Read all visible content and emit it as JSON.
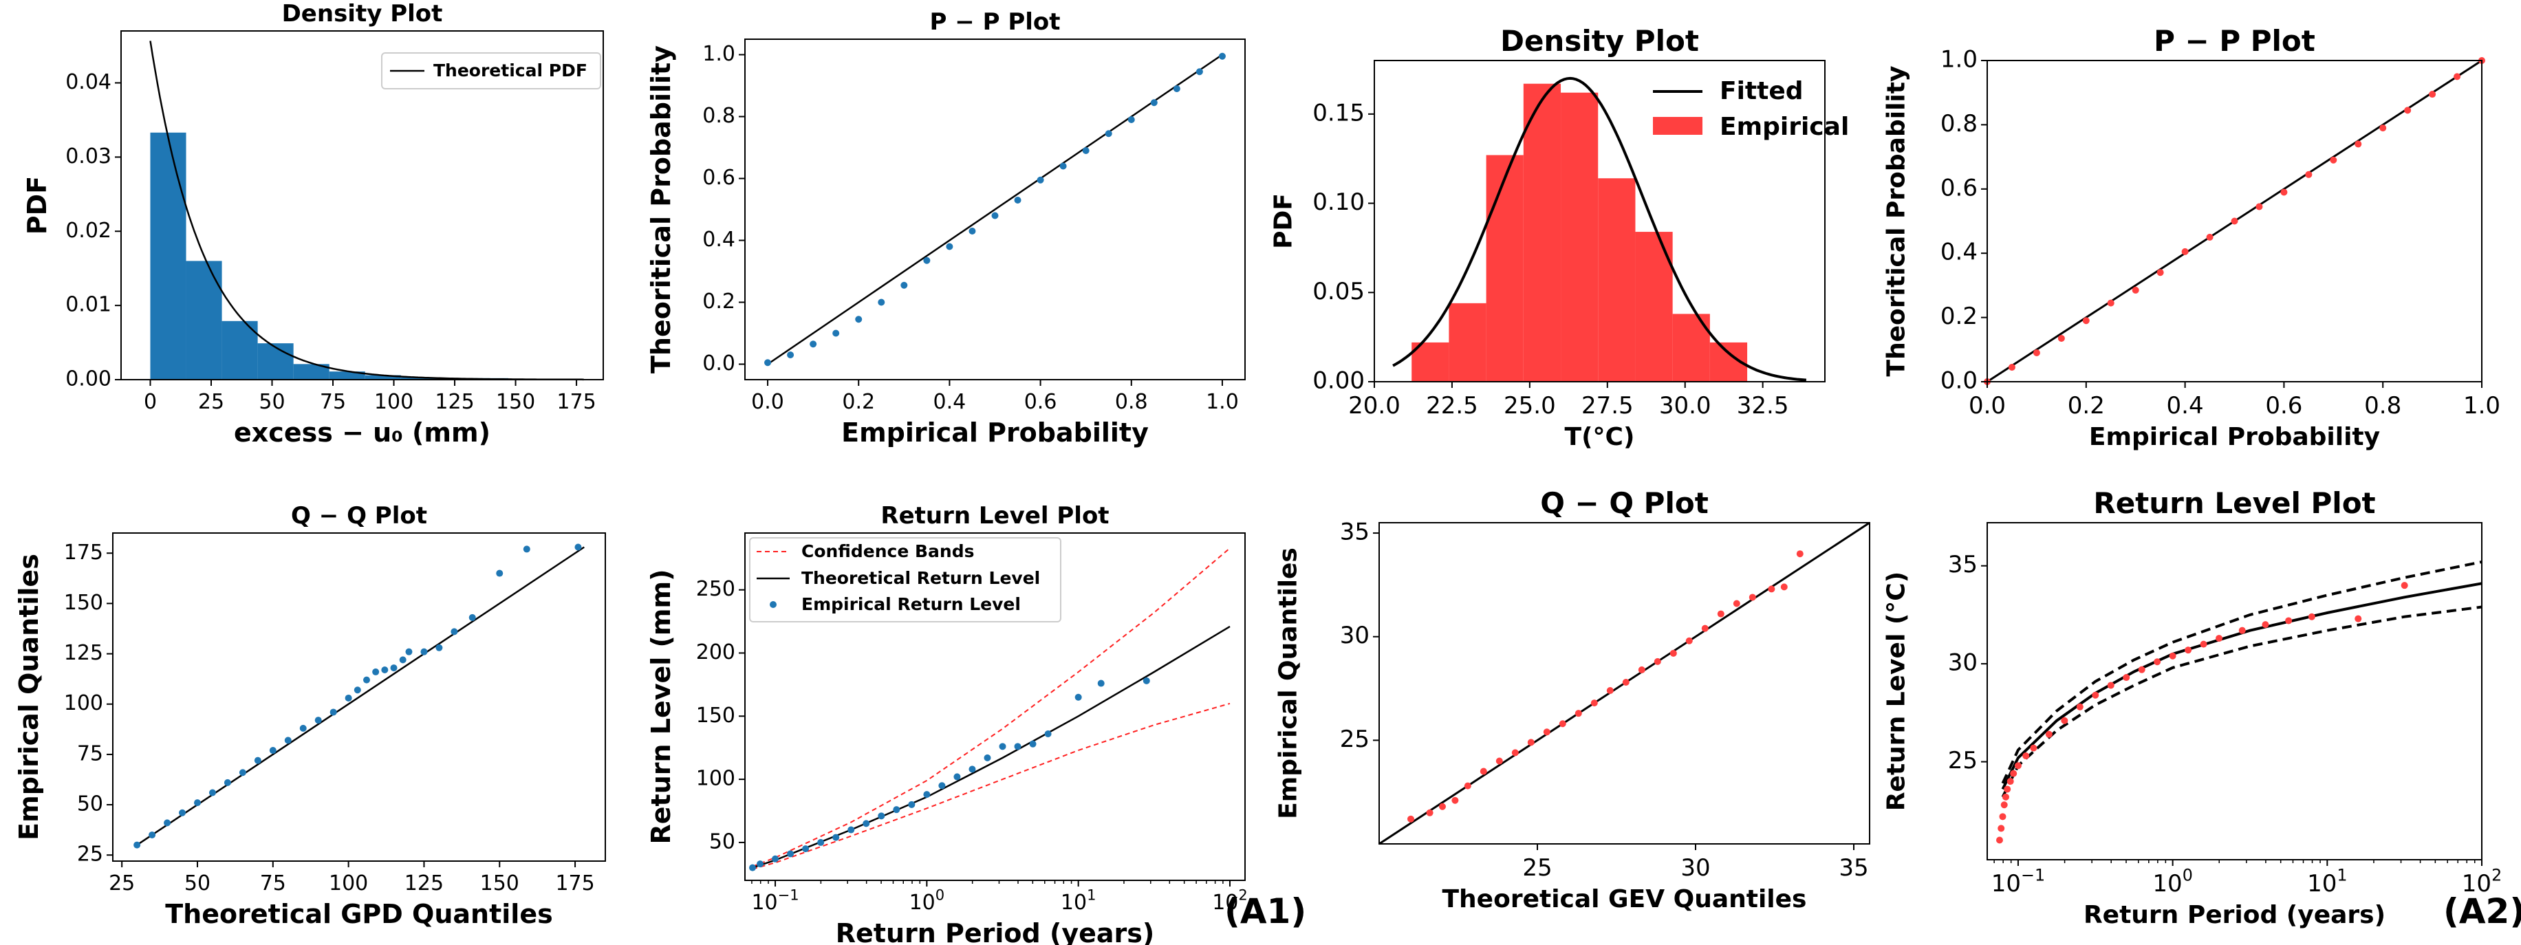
{
  "colors": {
    "blue": "#1f77b4",
    "red": "#ff4040",
    "line": "#000000",
    "band": "#ff2020"
  },
  "panel_labels": {
    "a1": "(A1)",
    "a2": "(A2)"
  },
  "chart_data": [
    {
      "id": "a1_density",
      "type": "bar+line",
      "title": "Density Plot",
      "xlabel": "excess − u₀ (mm)",
      "ylabel": "PDF",
      "xlim": [
        -12,
        186
      ],
      "ylim": [
        0,
        0.047
      ],
      "xticks": [
        0,
        25,
        50,
        75,
        100,
        125,
        150,
        175
      ],
      "yticks": [
        0,
        0.01,
        0.02,
        0.03,
        0.04
      ],
      "ytick_labels": [
        "0.00",
        "0.01",
        "0.02",
        "0.03",
        "0.04"
      ],
      "bin_edges": [
        0,
        14.7,
        29.4,
        44.1,
        58.8,
        73.5,
        88.2,
        102.9,
        117.6,
        132.3,
        147
      ],
      "bin_values": [
        0.0333,
        0.016,
        0.0079,
        0.0049,
        0.0021,
        0.0011,
        0.0006,
        0.0003,
        0.0002,
        0.0002
      ],
      "curve": {
        "name": "Theoretical PDF",
        "family": "exponential",
        "scale": 21.9,
        "x_range": [
          0,
          178
        ]
      },
      "legend": [
        "Theoretical PDF"
      ]
    },
    {
      "id": "a1_pp",
      "type": "scatter+line",
      "title": "P − P Plot",
      "xlabel": "Empirical Probability",
      "ylabel": "Theoritical Probability",
      "xlim": [
        -0.05,
        1.05
      ],
      "ylim": [
        -0.05,
        1.05
      ],
      "xticks": [
        0,
        0.2,
        0.4,
        0.6,
        0.8,
        1.0
      ],
      "yticks": [
        0,
        0.2,
        0.4,
        0.6,
        0.8,
        1.0
      ],
      "xtick_labels": [
        "0.0",
        "0.2",
        "0.4",
        "0.6",
        "0.8",
        "1.0"
      ],
      "ytick_labels": [
        "0.0",
        "0.2",
        "0.4",
        "0.6",
        "0.8",
        "1.0"
      ],
      "points": [
        [
          0.0,
          0.005
        ],
        [
          0.05,
          0.03
        ],
        [
          0.1,
          0.065
        ],
        [
          0.15,
          0.1
        ],
        [
          0.2,
          0.145
        ],
        [
          0.25,
          0.2
        ],
        [
          0.3,
          0.255
        ],
        [
          0.35,
          0.335
        ],
        [
          0.4,
          0.38
        ],
        [
          0.45,
          0.43
        ],
        [
          0.5,
          0.48
        ],
        [
          0.55,
          0.53
        ],
        [
          0.6,
          0.595
        ],
        [
          0.65,
          0.64
        ],
        [
          0.7,
          0.69
        ],
        [
          0.75,
          0.745
        ],
        [
          0.8,
          0.79
        ],
        [
          0.85,
          0.845
        ],
        [
          0.9,
          0.89
        ],
        [
          0.95,
          0.945
        ],
        [
          1.0,
          0.995
        ]
      ]
    },
    {
      "id": "a2_density",
      "type": "bar+line",
      "title": "Density Plot",
      "xlabel": "T(°C)",
      "ylabel": "PDF",
      "xlim": [
        20,
        34.5
      ],
      "ylim": [
        0,
        0.18
      ],
      "xticks": [
        20,
        22.5,
        25,
        27.5,
        30,
        32.5
      ],
      "yticks": [
        0,
        0.05,
        0.1,
        0.15
      ],
      "xtick_labels": [
        "20.0",
        "22.5",
        "25.0",
        "27.5",
        "30.0",
        "32.5"
      ],
      "ytick_labels": [
        "0.00",
        "0.05",
        "0.10",
        "0.15"
      ],
      "bin_edges": [
        21.2,
        22.4,
        23.6,
        24.8,
        26.0,
        27.2,
        28.4,
        29.6,
        30.8,
        32.0,
        33.2
      ],
      "bin_values": [
        0.022,
        0.044,
        0.127,
        0.167,
        0.162,
        0.114,
        0.084,
        0.038,
        0.022,
        0.0
      ],
      "curve": {
        "name": "Fitted",
        "family": "gaussian",
        "mean": 26.3,
        "sd": 2.35,
        "peak": 0.17,
        "x_range": [
          20.6,
          34
        ]
      },
      "legend": [
        "Fitted",
        "Empirical"
      ]
    },
    {
      "id": "a2_pp",
      "type": "scatter+line",
      "title": "P − P Plot",
      "xlabel": "Empirical Probability",
      "ylabel": "Theoritical Probability",
      "xlim": [
        0,
        1
      ],
      "ylim": [
        0,
        1
      ],
      "xticks": [
        0,
        0.2,
        0.4,
        0.6,
        0.8,
        1.0
      ],
      "yticks": [
        0,
        0.2,
        0.4,
        0.6,
        0.8,
        1.0
      ],
      "xtick_labels": [
        "0.0",
        "0.2",
        "0.4",
        "0.6",
        "0.8",
        "1.0"
      ],
      "ytick_labels": [
        "0.0",
        "0.2",
        "0.4",
        "0.6",
        "0.8",
        "1.0"
      ],
      "points": [
        [
          0.0,
          0.0
        ],
        [
          0.05,
          0.045
        ],
        [
          0.1,
          0.09
        ],
        [
          0.15,
          0.135
        ],
        [
          0.2,
          0.19
        ],
        [
          0.25,
          0.245
        ],
        [
          0.3,
          0.285
        ],
        [
          0.35,
          0.34
        ],
        [
          0.4,
          0.405
        ],
        [
          0.45,
          0.45
        ],
        [
          0.5,
          0.5
        ],
        [
          0.55,
          0.545
        ],
        [
          0.6,
          0.59
        ],
        [
          0.65,
          0.645
        ],
        [
          0.7,
          0.69
        ],
        [
          0.75,
          0.74
        ],
        [
          0.8,
          0.79
        ],
        [
          0.85,
          0.845
        ],
        [
          0.9,
          0.895
        ],
        [
          0.95,
          0.95
        ],
        [
          1.0,
          1.0
        ]
      ]
    },
    {
      "id": "a1_qq",
      "type": "scatter+line",
      "title": "Q − Q Plot",
      "xlabel": "Theoretical  GPD  Quantiles",
      "ylabel": "Empirical  Quantiles",
      "xlim": [
        22,
        185
      ],
      "ylim": [
        22,
        185
      ],
      "xticks": [
        25,
        50,
        75,
        100,
        125,
        150,
        175
      ],
      "yticks": [
        25,
        50,
        75,
        100,
        125,
        150,
        175
      ],
      "line_range": [
        30,
        178
      ],
      "points": [
        [
          30,
          30
        ],
        [
          35,
          35
        ],
        [
          40,
          41
        ],
        [
          45,
          46
        ],
        [
          50,
          51
        ],
        [
          55,
          56
        ],
        [
          60,
          61
        ],
        [
          65,
          66
        ],
        [
          70,
          72
        ],
        [
          75,
          77
        ],
        [
          80,
          82
        ],
        [
          85,
          88
        ],
        [
          90,
          92
        ],
        [
          95,
          96
        ],
        [
          100,
          103
        ],
        [
          103,
          107
        ],
        [
          106,
          112
        ],
        [
          109,
          116
        ],
        [
          112,
          117
        ],
        [
          115,
          118
        ],
        [
          118,
          122
        ],
        [
          120,
          126
        ],
        [
          125,
          126
        ],
        [
          130,
          128
        ],
        [
          135,
          136
        ],
        [
          141,
          143
        ],
        [
          150,
          165
        ],
        [
          159,
          177
        ],
        [
          176,
          178
        ]
      ]
    },
    {
      "id": "a1_return",
      "type": "line+scatter",
      "xscale": "log",
      "title": "Return Level Plot",
      "xlabel": "Return  Period (years)",
      "ylabel": "Return  Level (mm)",
      "xlim_log10": [
        -1.2,
        2.1
      ],
      "ylim": [
        20,
        295
      ],
      "xticks_log10": [
        -1,
        0,
        1,
        2
      ],
      "yticks": [
        50,
        100,
        150,
        200,
        250
      ],
      "legend": [
        "Confidence Bands",
        "Theoretical Return Level",
        "Empirical Return Level"
      ],
      "theoretical": {
        "x_log10": [
          -1.15,
          -1,
          -0.5,
          0,
          0.5,
          1,
          1.5,
          2
        ],
        "y": [
          30,
          36,
          60,
          86,
          117,
          150,
          185,
          221
        ]
      },
      "upper_band": {
        "x_log10": [
          -1.15,
          -1,
          -0.5,
          0,
          0.5,
          1,
          1.5,
          2
        ],
        "y": [
          31,
          38,
          66,
          99,
          140,
          185,
          232,
          283
        ]
      },
      "lower_band": {
        "x_log10": [
          -1.15,
          -1,
          -0.5,
          0,
          0.5,
          1,
          1.5,
          2
        ],
        "y": [
          29,
          34,
          55,
          77,
          100,
          123,
          143,
          160
        ]
      },
      "empirical": {
        "x_log10": [
          -1.15,
          -1.1,
          -1.0,
          -0.9,
          -0.8,
          -0.7,
          -0.6,
          -0.5,
          -0.4,
          -0.3,
          -0.2,
          -0.1,
          0.0,
          0.1,
          0.2,
          0.3,
          0.4,
          0.5,
          0.6,
          0.7,
          0.8,
          1.0,
          1.15,
          1.45
        ],
        "y": [
          30,
          33,
          37,
          41,
          45,
          50,
          54,
          60,
          65,
          71,
          76,
          80,
          88,
          95,
          102,
          108,
          117,
          126,
          126,
          128,
          136,
          165,
          176,
          178
        ]
      }
    },
    {
      "id": "a2_qq",
      "type": "scatter+line",
      "title": "Q − Q Plot",
      "xlabel": "Theoretical  GEV  Quantiles",
      "ylabel": "Empirical  Quantiles",
      "xlim": [
        20,
        35.5
      ],
      "ylim": [
        20,
        35.5
      ],
      "xticks": [
        25,
        30,
        35
      ],
      "yticks": [
        25,
        30,
        35
      ],
      "line_range": [
        20,
        35.5
      ],
      "points": [
        [
          21.0,
          21.2
        ],
        [
          21.6,
          21.5
        ],
        [
          22.0,
          21.8
        ],
        [
          22.4,
          22.1
        ],
        [
          22.8,
          22.8
        ],
        [
          23.3,
          23.5
        ],
        [
          23.8,
          24.0
        ],
        [
          24.3,
          24.4
        ],
        [
          24.8,
          24.9
        ],
        [
          25.3,
          25.4
        ],
        [
          25.8,
          25.8
        ],
        [
          26.3,
          26.3
        ],
        [
          26.8,
          26.8
        ],
        [
          27.3,
          27.4
        ],
        [
          27.8,
          27.8
        ],
        [
          28.3,
          28.4
        ],
        [
          28.8,
          28.8
        ],
        [
          29.3,
          29.2
        ],
        [
          29.8,
          29.8
        ],
        [
          30.3,
          30.4
        ],
        [
          30.8,
          31.1
        ],
        [
          31.3,
          31.6
        ],
        [
          31.8,
          31.9
        ],
        [
          32.4,
          32.3
        ],
        [
          32.8,
          32.4
        ],
        [
          33.3,
          34.0
        ]
      ]
    },
    {
      "id": "a2_return",
      "type": "line+scatter",
      "xscale": "log",
      "title": "Return Level Plot",
      "xlabel": "Return  Period (years)",
      "ylabel": "Return Level (°C)",
      "xlim_log10": [
        -1.2,
        2.0
      ],
      "ylim": [
        20,
        37.2
      ],
      "xticks_log10": [
        -1,
        0,
        1,
        2
      ],
      "yticks": [
        25,
        30,
        35
      ],
      "theoretical": {
        "x_log10": [
          -1.1,
          -1,
          -0.75,
          -0.5,
          -0.25,
          0,
          0.5,
          1,
          1.5,
          2
        ],
        "y": [
          23.6,
          25.2,
          27.1,
          28.5,
          29.6,
          30.5,
          31.7,
          32.6,
          33.4,
          34.1
        ]
      },
      "upper_band": {
        "x_log10": [
          -1.1,
          -1,
          -0.75,
          -0.5,
          -0.25,
          0,
          0.5,
          1,
          1.5,
          2
        ],
        "y": [
          23.9,
          25.6,
          27.6,
          29.1,
          30.2,
          31.1,
          32.5,
          33.5,
          34.4,
          35.2
        ]
      },
      "lower_band": {
        "x_log10": [
          -1.1,
          -1,
          -0.75,
          -0.5,
          -0.25,
          0,
          0.5,
          1,
          1.5,
          2
        ],
        "y": [
          23.2,
          24.8,
          26.6,
          27.9,
          28.9,
          29.8,
          30.9,
          31.7,
          32.4,
          32.9
        ]
      },
      "empirical": {
        "x_log10": [
          -1.12,
          -1.11,
          -1.1,
          -1.09,
          -1.08,
          -1.07,
          -1.05,
          -1.03,
          -1.0,
          -0.95,
          -0.9,
          -0.8,
          -0.7,
          -0.6,
          -0.5,
          -0.4,
          -0.3,
          -0.2,
          -0.1,
          0.0,
          0.1,
          0.2,
          0.3,
          0.45,
          0.6,
          0.75,
          0.9,
          1.2,
          1.5
        ],
        "y": [
          21.0,
          21.6,
          22.2,
          22.8,
          23.2,
          23.6,
          24.0,
          24.4,
          24.8,
          25.3,
          25.7,
          26.4,
          27.1,
          27.8,
          28.4,
          28.9,
          29.3,
          29.7,
          30.1,
          30.4,
          30.7,
          31.0,
          31.3,
          31.7,
          32.0,
          32.2,
          32.4,
          32.3,
          34.0
        ]
      }
    }
  ]
}
